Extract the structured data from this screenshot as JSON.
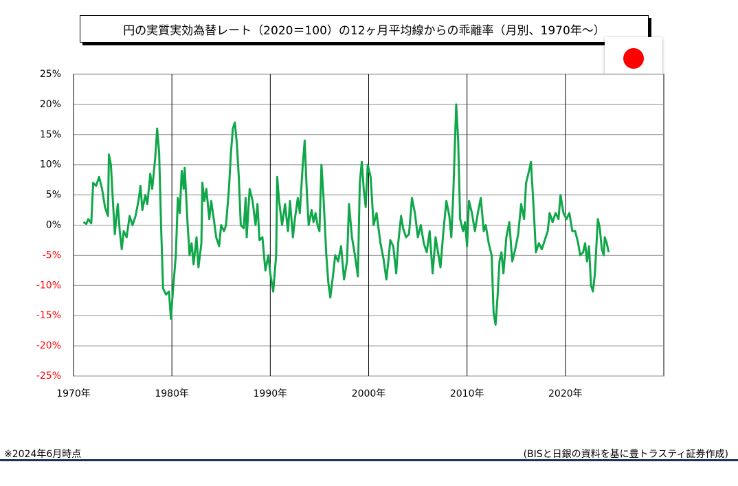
{
  "chart_data": {
    "type": "line",
    "title": "円の実質実効為替レート（2020＝100）の12ヶ月平均線からの乖離率（月別、1970年～）",
    "note": "※2024年6月時点",
    "source": "(BISと日銀の資料を基に豊トラスティ証券作成)",
    "xlim": [
      1970,
      2030
    ],
    "xticks": [
      {
        "value": 1970,
        "label": "1970年"
      },
      {
        "value": 1980,
        "label": "1980年"
      },
      {
        "value": 1990,
        "label": "1990年"
      },
      {
        "value": 2000,
        "label": "2000年"
      },
      {
        "value": 2010,
        "label": "2010年"
      },
      {
        "value": 2020,
        "label": "2020年"
      }
    ],
    "ylim": [
      -25,
      25
    ],
    "yticks": [
      {
        "value": -25,
        "label": "-25%"
      },
      {
        "value": -20,
        "label": "-20%"
      },
      {
        "value": -15,
        "label": "-15%"
      },
      {
        "value": -10,
        "label": "-10%"
      },
      {
        "value": -5,
        "label": "-5%"
      },
      {
        "value": 0,
        "label": "0%"
      },
      {
        "value": 5,
        "label": "5%"
      },
      {
        "value": 10,
        "label": "10%"
      },
      {
        "value": 15,
        "label": "15%"
      },
      {
        "value": 20,
        "label": "20%"
      },
      {
        "value": 25,
        "label": "25%"
      }
    ],
    "negative_tick_color": "#ff0000",
    "grid": true,
    "x": [
      1971.0,
      1971.3,
      1971.5,
      1971.8,
      1972.0,
      1972.3,
      1972.6,
      1972.9,
      1973.2,
      1973.5,
      1973.6,
      1973.8,
      1974.0,
      1974.2,
      1974.3,
      1974.5,
      1974.7,
      1974.9,
      1975.1,
      1975.4,
      1975.7,
      1976.0,
      1976.3,
      1976.6,
      1976.8,
      1977.0,
      1977.3,
      1977.5,
      1977.8,
      1978.0,
      1978.3,
      1978.5,
      1978.7,
      1978.9,
      1979.1,
      1979.4,
      1979.7,
      1979.9,
      1980.1,
      1980.4,
      1980.6,
      1980.8,
      1981.0,
      1981.2,
      1981.3,
      1981.6,
      1981.8,
      1982.0,
      1982.2,
      1982.5,
      1982.7,
      1983.0,
      1983.1,
      1983.3,
      1983.5,
      1983.8,
      1984.0,
      1984.3,
      1984.5,
      1984.8,
      1985.0,
      1985.3,
      1985.5,
      1985.8,
      1986.0,
      1986.2,
      1986.4,
      1986.6,
      1986.8,
      1987.0,
      1987.3,
      1987.5,
      1987.6,
      1987.9,
      1988.2,
      1988.5,
      1988.7,
      1988.9,
      1989.2,
      1989.5,
      1989.8,
      1990.0,
      1990.3,
      1990.6,
      1990.7,
      1990.9,
      1991.2,
      1991.5,
      1991.8,
      1992.0,
      1992.3,
      1992.5,
      1992.8,
      1993.0,
      1993.3,
      1993.5,
      1993.7,
      1993.9,
      1994.2,
      1994.4,
      1994.6,
      1994.8,
      1995.0,
      1995.2,
      1995.4,
      1995.7,
      1995.9,
      1996.1,
      1996.4,
      1996.6,
      1996.9,
      1997.2,
      1997.5,
      1997.8,
      1998.0,
      1998.3,
      1998.6,
      1998.9,
      1999.1,
      1999.3,
      1999.5,
      1999.7,
      1999.9,
      2000.2,
      2000.5,
      2000.8,
      2001.0,
      2001.2,
      2001.5,
      2001.8,
      2002.0,
      2002.2,
      2002.5,
      2002.8,
      2003.0,
      2003.3,
      2003.5,
      2003.8,
      2004.1,
      2004.4,
      2004.7,
      2005.0,
      2005.3,
      2005.6,
      2005.9,
      2006.2,
      2006.5,
      2006.8,
      2007.0,
      2007.3,
      2007.6,
      2007.9,
      2008.2,
      2008.4,
      2008.6,
      2008.9,
      2009.1,
      2009.3,
      2009.6,
      2009.8,
      2010.0,
      2010.2,
      2010.5,
      2010.8,
      2011.1,
      2011.4,
      2011.7,
      2011.9,
      2012.2,
      2012.5,
      2012.7,
      2012.9,
      2013.1,
      2013.3,
      2013.5,
      2013.7,
      2014.0,
      2014.3,
      2014.6,
      2014.9,
      2015.2,
      2015.5,
      2015.8,
      2016.0,
      2016.3,
      2016.5,
      2016.8,
      2017.0,
      2017.3,
      2017.6,
      2017.9,
      2018.2,
      2018.4,
      2018.7,
      2019.0,
      2019.3,
      2019.5,
      2019.8,
      2020.1,
      2020.4,
      2020.7,
      2021.0,
      2021.3,
      2021.5,
      2021.8,
      2022.0,
      2022.2,
      2022.4,
      2022.6,
      2022.8,
      2023.0,
      2023.2,
      2023.3,
      2023.5,
      2023.7,
      2023.9,
      2024.0,
      2024.2,
      2024.4
    ],
    "series": [
      {
        "color": "#10a64a",
        "values": [
          0.5,
          0.2,
          1,
          0.3,
          7,
          6.5,
          8,
          6,
          3,
          1.5,
          11.7,
          10,
          4,
          -1.5,
          0.5,
          3.5,
          -1,
          -4,
          -1,
          -2,
          1.5,
          0,
          1.5,
          4,
          6.5,
          2.5,
          5,
          3.5,
          8.5,
          6,
          11,
          16,
          12,
          0,
          -10.5,
          -11.5,
          -11,
          -15.5,
          -11,
          -5,
          4.5,
          2,
          9,
          6,
          9.5,
          0,
          -5,
          -3,
          -6.5,
          -2,
          -7,
          -3,
          7,
          4,
          6,
          1,
          4,
          0.5,
          -2,
          -3.5,
          0,
          -1,
          0,
          6,
          12,
          16,
          17,
          13.5,
          8,
          0,
          -0.5,
          4.5,
          -2,
          6,
          4,
          0,
          3.5,
          -2.5,
          -2,
          -7.5,
          -5,
          -8,
          -11,
          -5,
          8,
          4,
          0,
          3.5,
          -1,
          4,
          -2,
          1,
          4.5,
          2,
          10,
          14,
          6,
          0,
          2.5,
          0.5,
          2,
          0,
          -1,
          10,
          5,
          -5,
          -9.5,
          -12,
          -8,
          -5,
          -6,
          -3.5,
          -9,
          -6,
          3.5,
          -2,
          -5,
          -8.5,
          7,
          10.5,
          6,
          3,
          10,
          8,
          0,
          2,
          -0.5,
          -3,
          -5.5,
          -9,
          -6,
          -2.5,
          -3.5,
          -8,
          -3,
          1.5,
          -0.5,
          -2,
          -1.5,
          4.5,
          2,
          -2,
          0,
          -3,
          -4.5,
          -1,
          -8,
          -2,
          -4,
          -7,
          -1,
          4,
          1.5,
          -2,
          5,
          20,
          14,
          1,
          -1,
          0.5,
          -3.5,
          4,
          2,
          -1,
          2,
          4.5,
          -1,
          0,
          -3,
          -5,
          -14.5,
          -16.5,
          -12,
          -6,
          -4.5,
          -8,
          -2,
          0.5,
          -6,
          -4,
          -1.5,
          3.5,
          1,
          7,
          9,
          10.5,
          2,
          -4.5,
          -3,
          -4,
          -2.5,
          -1,
          2,
          0.5,
          2,
          1,
          5,
          2,
          1,
          2,
          -1,
          -1,
          -3,
          -5,
          -4.5,
          -3,
          -6,
          -3.5,
          -10,
          -11,
          -8,
          -2,
          1,
          -0.5,
          -4,
          -5,
          -2,
          -3,
          -4.5
        ]
      }
    ]
  }
}
